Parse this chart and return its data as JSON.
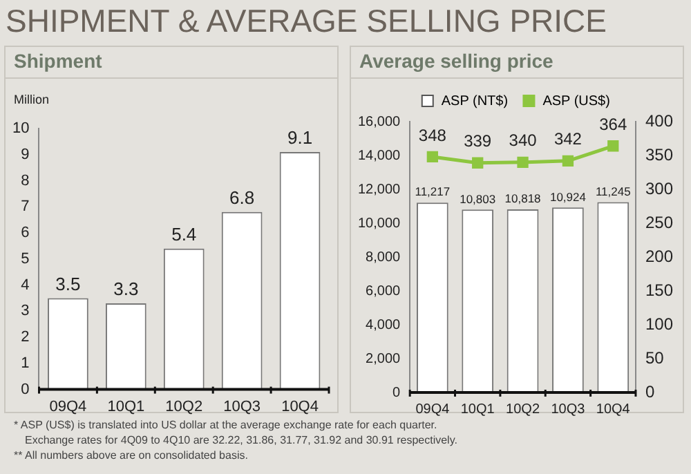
{
  "chart_data": [
    {
      "type": "bar",
      "title": "SHIPMENT & AVERAGE SELLING PRICE",
      "subtitle": "Shipment",
      "ylabel": "Million",
      "categories": [
        "09Q4",
        "10Q1",
        "10Q2",
        "10Q3",
        "10Q4"
      ],
      "series": [
        {
          "color": "#ffffff",
          "values": [
            3.5,
            3.3,
            5.4,
            6.8,
            9.1
          ]
        }
      ],
      "ylim": [
        0,
        10
      ],
      "yticks": [
        0,
        1,
        2,
        3,
        4,
        5,
        6,
        7,
        8,
        9,
        10
      ],
      "grid": false,
      "legend": false,
      "data_labels": true,
      "annotations": [
        "* ASP (US$) is translated into US dollar at the average exchange rate for each quarter.",
        "Exchange rates for 4Q09 to 4Q10 are 32.22, 31.86, 31.77, 31.92 and 30.91 respectively.",
        "** All numbers above are on consolidated basis."
      ]
    },
    {
      "type": "bar",
      "title": "Average selling price",
      "categories": [
        "09Q4",
        "10Q1",
        "10Q2",
        "10Q3",
        "10Q4"
      ],
      "series": [
        {
          "name": "ASP (NT$)",
          "color": "#ffffff",
          "values": [
            11217,
            10803,
            10818,
            10924,
            11245
          ],
          "value_labels": [
            "11,217",
            "10,803",
            "10,818",
            "10,924",
            "11,245"
          ]
        },
        {
          "name": "ASP (US$)",
          "type": "line",
          "axis": "y2",
          "color": "#8dc63f",
          "values": [
            348,
            339,
            340,
            342,
            364
          ],
          "value_labels": [
            "348",
            "339",
            "340",
            "342",
            "364"
          ]
        }
      ],
      "ylim": [
        0,
        16000
      ],
      "yticks": [
        {
          "value": 0,
          "label": "0"
        },
        {
          "value": 2000,
          "label": "2,000"
        },
        {
          "value": 4000,
          "label": "4,000"
        },
        {
          "value": 6000,
          "label": "6,000"
        },
        {
          "value": 8000,
          "label": "8,000"
        },
        {
          "value": 10000,
          "label": "10,000"
        },
        {
          "value": 12000,
          "label": "12,000"
        },
        {
          "value": 14000,
          "label": "14,000"
        },
        {
          "value": 16000,
          "label": "16,000"
        }
      ],
      "y2lim": [
        0,
        400
      ],
      "y2ticks": [
        0,
        50,
        100,
        150,
        200,
        250,
        300,
        350,
        400
      ],
      "grid": false,
      "legend": "top",
      "marker": "square"
    }
  ]
}
